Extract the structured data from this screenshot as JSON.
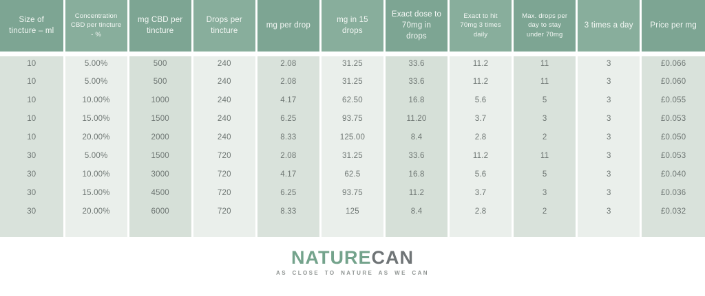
{
  "chart_data": {
    "type": "table",
    "columns": [
      "Size of tincture – ml",
      "Concentration CBD per tincture - %",
      "mg CBD per tincture",
      "Drops per tincture",
      "mg per drop",
      "mg in 15 drops",
      "Exact dose to 70mg in drops",
      "Exact to hit 70mg 3 times daily",
      "Max. drops per day to stay under 70mg",
      "3 times a day",
      "Price per mg"
    ],
    "rows": [
      [
        "10",
        "5.00%",
        "500",
        "240",
        "2.08",
        "31.25",
        "33.6",
        "11.2",
        "11",
        "3",
        "£0.066"
      ],
      [
        "10",
        "5.00%",
        "500",
        "240",
        "2.08",
        "31.25",
        "33.6",
        "11.2",
        "11",
        "3",
        "£0.060"
      ],
      [
        "10",
        "10.00%",
        "1000",
        "240",
        "4.17",
        "62.50",
        "16.8",
        "5.6",
        "5",
        "3",
        "£0.055"
      ],
      [
        "10",
        "15.00%",
        "1500",
        "240",
        "6.25",
        "93.75",
        "11.20",
        "3.7",
        "3",
        "3",
        "£0.053"
      ],
      [
        "10",
        "20.00%",
        "2000",
        "240",
        "8.33",
        "125.00",
        "8.4",
        "2.8",
        "2",
        "3",
        "£0.050"
      ],
      [
        "30",
        "5.00%",
        "1500",
        "720",
        "2.08",
        "31.25",
        "33.6",
        "11.2",
        "11",
        "3",
        "£0.053"
      ],
      [
        "30",
        "10.00%",
        "3000",
        "720",
        "4.17",
        "62.5",
        "16.8",
        "5.6",
        "5",
        "3",
        "£0.040"
      ],
      [
        "30",
        "15.00%",
        "4500",
        "720",
        "6.25",
        "93.75",
        "11.2",
        "3.7",
        "3",
        "3",
        "£0.036"
      ],
      [
        "30",
        "20.00%",
        "6000",
        "720",
        "8.33",
        "125",
        "8.4",
        "2.8",
        "2",
        "3",
        "£0.032"
      ]
    ],
    "legend_position": "none",
    "grid": false
  },
  "logo": {
    "brand_primary": "NATURE",
    "brand_secondary": "CAN",
    "tagline": "AS CLOSE TO NATURE AS WE CAN"
  },
  "colors": {
    "header_odd": "#7da593",
    "header_even": "#88ae9c",
    "body_odd": "#d9e2db",
    "body_even": "#eaefeb",
    "header_text": "#f3f7f4",
    "body_text": "#6e7673",
    "logo_green": "#74a38c",
    "logo_gray": "#6f7476"
  }
}
